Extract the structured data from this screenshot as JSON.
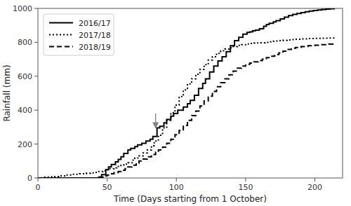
{
  "chart_data": {
    "type": "step",
    "title": "",
    "xlabel": "Time (Days starting from 1 October)",
    "ylabel": "Rainfall (mm)",
    "xlim": [
      0,
      220
    ],
    "ylim": [
      0,
      1000
    ],
    "xticks": [
      0,
      50,
      100,
      150,
      200
    ],
    "yticks": [
      0,
      200,
      400,
      600,
      800,
      1000
    ],
    "grid": false,
    "legend": "upper left",
    "annotations": [
      {
        "type": "arrow",
        "x": 85,
        "y_from": 380,
        "y_to": 295,
        "color": "#808080"
      }
    ],
    "series": [
      {
        "name": "2016/17",
        "color": "#000000",
        "line_style": "solid",
        "x": [
          0,
          42,
          44,
          46,
          49,
          51,
          53,
          56,
          58,
          60,
          62,
          65,
          67,
          70,
          72,
          75,
          78,
          81,
          83,
          86,
          88,
          91,
          93,
          96,
          98,
          101,
          105,
          108,
          110,
          113,
          116,
          119,
          121,
          124,
          127,
          130,
          133,
          136,
          139,
          142,
          145,
          148,
          151,
          153,
          155,
          157,
          160,
          163,
          165,
          167,
          170,
          172,
          175,
          178,
          181,
          184,
          187,
          190,
          193,
          196,
          199,
          202,
          205,
          208,
          211,
          214
        ],
        "values": [
          0,
          0,
          5,
          20,
          50,
          65,
          80,
          95,
          110,
          125,
          145,
          165,
          175,
          185,
          195,
          205,
          218,
          228,
          245,
          295,
          305,
          325,
          345,
          365,
          380,
          400,
          418,
          438,
          458,
          488,
          528,
          558,
          585,
          625,
          660,
          690,
          715,
          745,
          780,
          810,
          830,
          848,
          858,
          862,
          868,
          872,
          880,
          895,
          905,
          912,
          920,
          928,
          938,
          948,
          958,
          965,
          970,
          975,
          980,
          985,
          988,
          991,
          994,
          996,
          998,
          1000
        ]
      },
      {
        "name": "2017/18",
        "color": "#000000",
        "line_style": "dotted",
        "x": [
          0,
          5,
          10,
          15,
          20,
          25,
          30,
          35,
          38,
          41,
          44,
          47,
          50,
          52,
          55,
          57,
          60,
          62,
          65,
          68,
          70,
          73,
          76,
          79,
          82,
          84,
          87,
          90,
          93,
          96,
          99,
          102,
          105,
          108,
          111,
          114,
          117,
          120,
          123,
          126,
          129,
          132,
          135,
          138,
          141,
          144,
          147,
          150,
          153,
          156,
          158,
          161,
          164,
          167,
          170,
          172,
          174,
          177,
          180,
          183,
          186,
          190,
          195,
          200,
          205,
          210,
          215
        ],
        "values": [
          0,
          5,
          8,
          12,
          18,
          22,
          25,
          28,
          30,
          33,
          38,
          42,
          48,
          55,
          60,
          68,
          75,
          82,
          90,
          105,
          118,
          130,
          148,
          165,
          190,
          218,
          252,
          295,
          340,
          385,
          430,
          480,
          520,
          555,
          585,
          612,
          640,
          668,
          695,
          715,
          735,
          750,
          760,
          768,
          775,
          782,
          786,
          790,
          793,
          795,
          797,
          798,
          800,
          803,
          806,
          808,
          810,
          812,
          814,
          816,
          818,
          820,
          822,
          823,
          824,
          825,
          825
        ]
      },
      {
        "name": "2018/19",
        "color": "#000000",
        "line_style": "dashed",
        "x": [
          0,
          42,
          44,
          47,
          50,
          52,
          55,
          58,
          60,
          63,
          65,
          68,
          71,
          73,
          76,
          79,
          82,
          85,
          87,
          90,
          93,
          96,
          99,
          102,
          105,
          108,
          111,
          114,
          117,
          120,
          123,
          126,
          129,
          132,
          135,
          138,
          141,
          144,
          147,
          150,
          153,
          156,
          159,
          162,
          165,
          168,
          171,
          174,
          177,
          180,
          183,
          186,
          190,
          195,
          200,
          205,
          210,
          215
        ],
        "values": [
          0,
          0,
          5,
          12,
          18,
          25,
          32,
          38,
          45,
          55,
          65,
          75,
          88,
          100,
          112,
          125,
          138,
          152,
          165,
          182,
          205,
          228,
          255,
          280,
          310,
          340,
          368,
          395,
          425,
          455,
          482,
          510,
          538,
          562,
          585,
          608,
          630,
          648,
          660,
          670,
          678,
          685,
          692,
          700,
          710,
          718,
          728,
          738,
          748,
          758,
          765,
          770,
          775,
          780,
          783,
          786,
          789,
          792
        ]
      }
    ]
  }
}
